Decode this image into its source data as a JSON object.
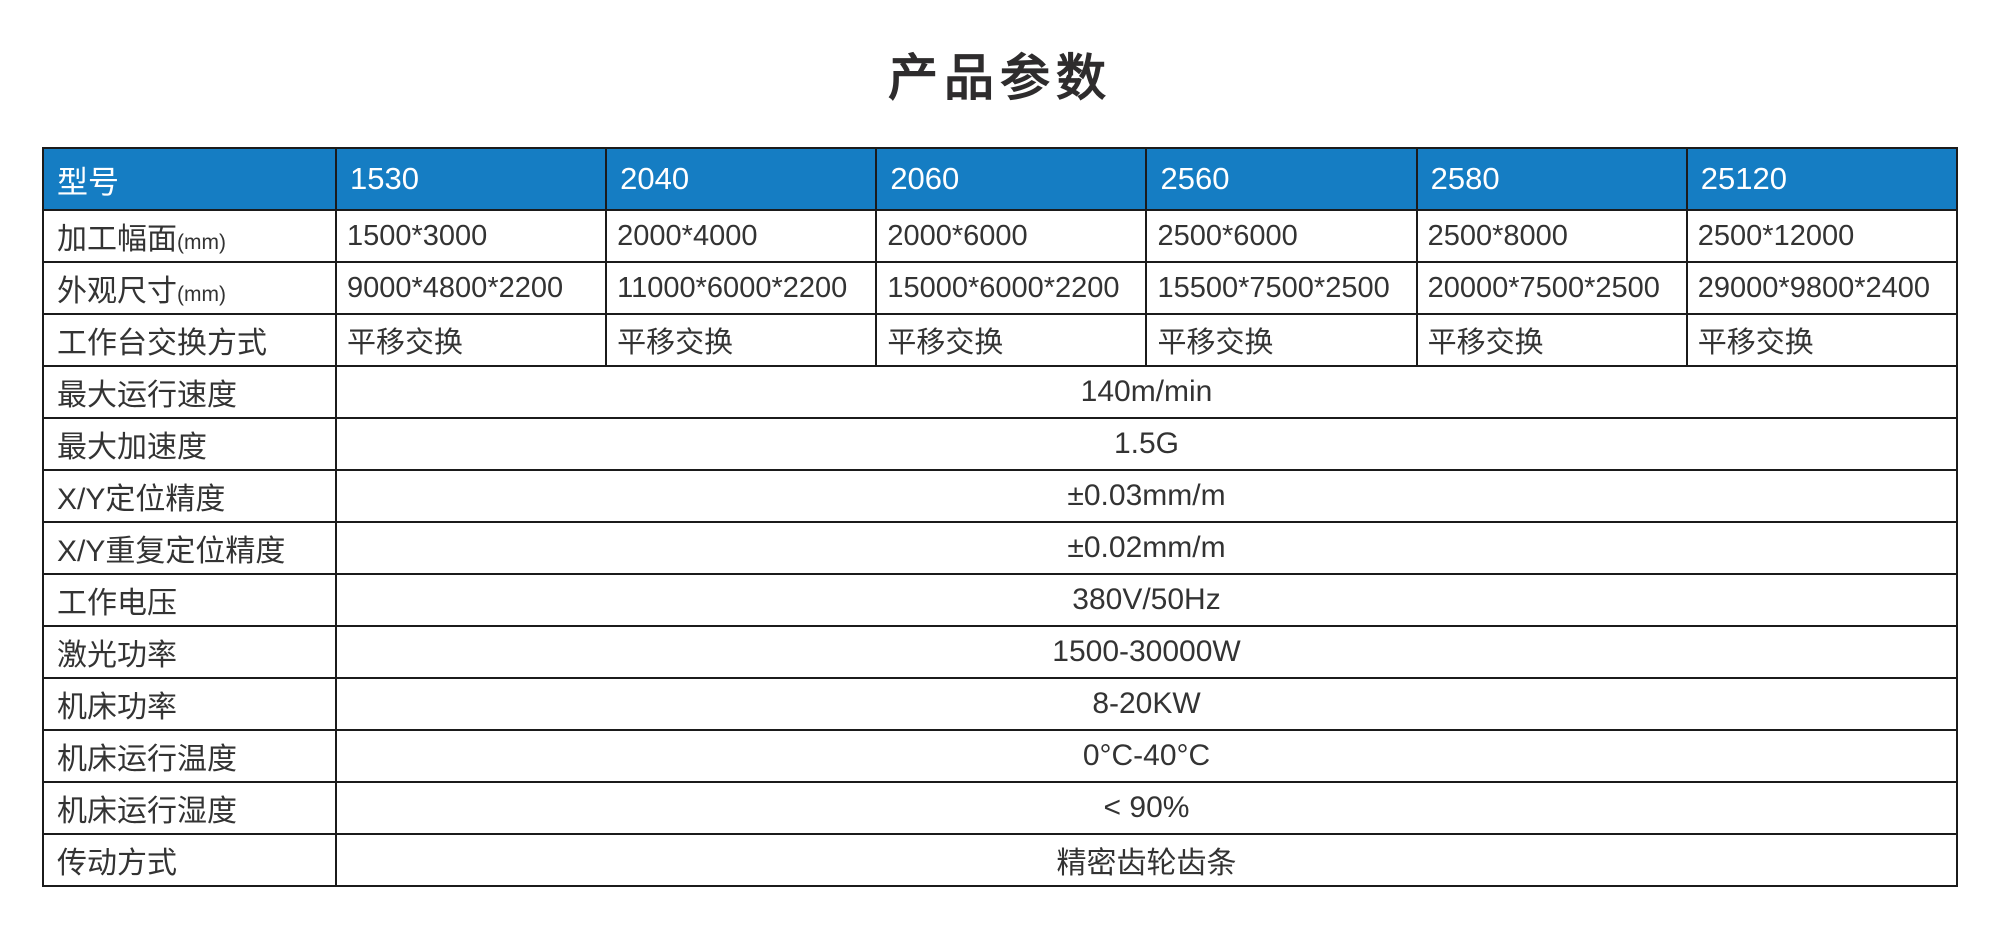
{
  "page": {
    "title": "产品参数"
  },
  "table": {
    "header": {
      "label": "型号",
      "models": [
        "1530",
        "2040",
        "2060",
        "2560",
        "2580",
        "25120"
      ]
    },
    "per_model_rows": [
      {
        "label": "加工幅面",
        "unit": "(mm)",
        "values": [
          "1500*3000",
          "2000*4000",
          "2000*6000",
          "2500*6000",
          "2500*8000",
          "2500*12000"
        ]
      },
      {
        "label": "外观尺寸",
        "unit": "(mm)",
        "values": [
          "9000*4800*2200",
          "11000*6000*2200",
          "15000*6000*2200",
          "15500*7500*2500",
          "20000*7500*2500",
          "29000*9800*2400"
        ]
      },
      {
        "label": "工作台交换方式",
        "unit": "",
        "values": [
          "平移交换",
          "平移交换",
          "平移交换",
          "平移交换",
          "平移交换",
          "平移交换"
        ]
      }
    ],
    "shared_rows": [
      {
        "label": "最大运行速度",
        "value": "140m/min"
      },
      {
        "label": "最大加速度",
        "value": "1.5G"
      },
      {
        "label": "X/Y定位精度",
        "value": "±0.03mm/m"
      },
      {
        "label": "X/Y重复定位精度",
        "value": "±0.02mm/m"
      },
      {
        "label": "工作电压",
        "value": "380V/50Hz"
      },
      {
        "label": "激光功率",
        "value": "1500-30000W"
      },
      {
        "label": "机床功率",
        "value": "8-20KW"
      },
      {
        "label": "机床运行温度",
        "value": "0°C-40°C"
      },
      {
        "label": "机床运行湿度",
        "value": "< 90%"
      },
      {
        "label": "传动方式",
        "value": "精密齿轮齿条"
      }
    ],
    "colors": {
      "header_bg": "#157dc3",
      "header_text": "#ffffff",
      "border": "#1b1b1b",
      "body_text": "#333333"
    }
  },
  "chart_data": {
    "type": "table",
    "title": "产品参数",
    "columns": [
      "型号",
      "1530",
      "2040",
      "2060",
      "2560",
      "2580",
      "25120"
    ],
    "rows": [
      [
        "加工幅面(mm)",
        "1500*3000",
        "2000*4000",
        "2000*6000",
        "2500*6000",
        "2500*8000",
        "2500*12000"
      ],
      [
        "外观尺寸(mm)",
        "9000*4800*2200",
        "11000*6000*2200",
        "15000*6000*2200",
        "15500*7500*2500",
        "20000*7500*2500",
        "29000*9800*2400"
      ],
      [
        "工作台交换方式",
        "平移交换",
        "平移交换",
        "平移交换",
        "平移交换",
        "平移交换",
        "平移交换"
      ],
      [
        "最大运行速度",
        "140m/min"
      ],
      [
        "最大加速度",
        "1.5G"
      ],
      [
        "X/Y定位精度",
        "±0.03mm/m"
      ],
      [
        "X/Y重复定位精度",
        "±0.02mm/m"
      ],
      [
        "工作电压",
        "380V/50Hz"
      ],
      [
        "激光功率",
        "1500-30000W"
      ],
      [
        "机床功率",
        "8-20KW"
      ],
      [
        "机床运行温度",
        "0°C-40°C"
      ],
      [
        "机床运行湿度",
        "< 90%"
      ],
      [
        "传动方式",
        "精密齿轮齿条"
      ]
    ]
  }
}
